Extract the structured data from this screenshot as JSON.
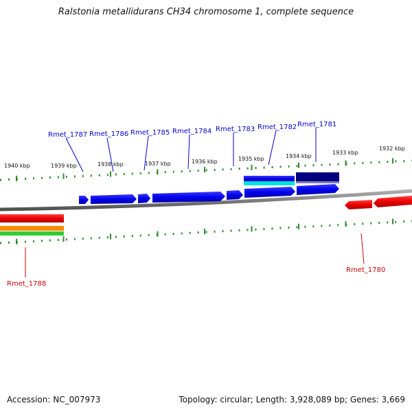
{
  "title": "Ralstonia metallidurans CH34 chromosome 1, complete sequence",
  "footer": {
    "accession": "Accession: NC_007973",
    "summary": "Topology: circular; Length: 3,928,089 bp; Genes: 3,669"
  },
  "scale": {
    "tick_labels": [
      "1940 kbp",
      "1939 kbp",
      "1938 kbp",
      "1937 kbp",
      "1936 kbp",
      "1935 kbp",
      "1934 kbp",
      "1933 kbp",
      "1932 kbp"
    ]
  },
  "genes": {
    "forward": [
      "Rmet_1787",
      "Rmet_1786",
      "Rmet_1785",
      "Rmet_1784",
      "Rmet_1783",
      "Rmet_1782",
      "Rmet_1781"
    ],
    "reverse": [
      "Rmet_1788",
      "Rmet_1780"
    ]
  },
  "colors": {
    "forward_gene": "#0000ee",
    "forward_gene_dark": "#000080",
    "forward_label": "#0000cc",
    "reverse_gene": "#ee0000",
    "reverse_label": "#cc0000",
    "tick": "#2e8b2e",
    "backbone": "#808080",
    "cyan_track": "#00e0e0",
    "orange_track": "#ff8c00",
    "green_track": "#33cc33"
  }
}
